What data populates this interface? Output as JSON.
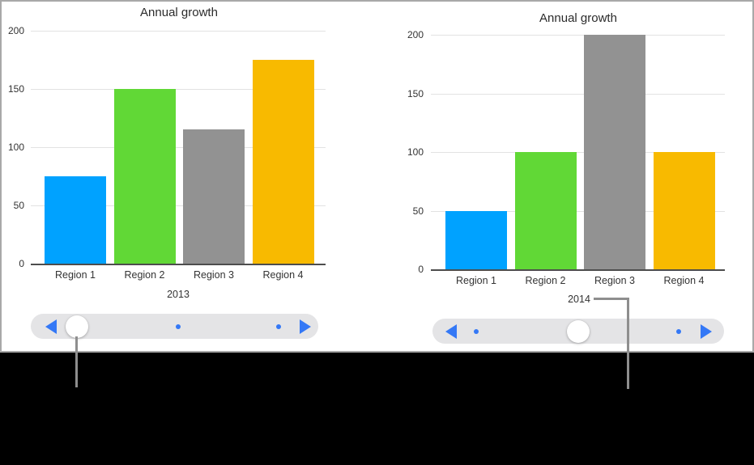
{
  "page": {
    "background_color": "#000000",
    "panel_background_color": "#ffffff",
    "panel_border_color": "#a8a8a8"
  },
  "chart_data": [
    {
      "type": "bar",
      "title": "Annual growth",
      "xlabel": "2013",
      "ylabel": "",
      "categories": [
        "Region 1",
        "Region 2",
        "Region 3",
        "Region 4"
      ],
      "values": [
        75,
        150,
        115,
        175
      ],
      "ylim": [
        0,
        200
      ],
      "yticks": [
        0,
        50,
        100,
        150,
        200
      ],
      "bar_colors": [
        "#00A2FF",
        "#61D836",
        "#929292",
        "#F8BA00"
      ],
      "grid": true,
      "legend": "none"
    },
    {
      "type": "bar",
      "title": "Annual growth",
      "xlabel": "2014",
      "ylabel": "",
      "categories": [
        "Region 1",
        "Region 2",
        "Region 3",
        "Region 4"
      ],
      "values": [
        50,
        100,
        200,
        100
      ],
      "ylim": [
        0,
        200
      ],
      "yticks": [
        0,
        50,
        100,
        150,
        200
      ],
      "bar_colors": [
        "#00A2FF",
        "#61D836",
        "#929292",
        "#F8BA00"
      ],
      "grid": true,
      "legend": "none"
    }
  ],
  "scrubbers": [
    {
      "selected_position": 1,
      "total_positions": 3
    },
    {
      "selected_position": 2,
      "total_positions": 3
    }
  ],
  "colors": {
    "bar_blue": "#00A2FF",
    "bar_green": "#61D836",
    "bar_gray": "#929292",
    "bar_amber": "#F8BA00",
    "scrubber_track": "#e4e4e6",
    "scrubber_blue": "#3478f6",
    "gridline": "#e2e2e2",
    "axis": "#4d4d4d",
    "text": "#333333",
    "callout_line": "#8e8e8e"
  }
}
